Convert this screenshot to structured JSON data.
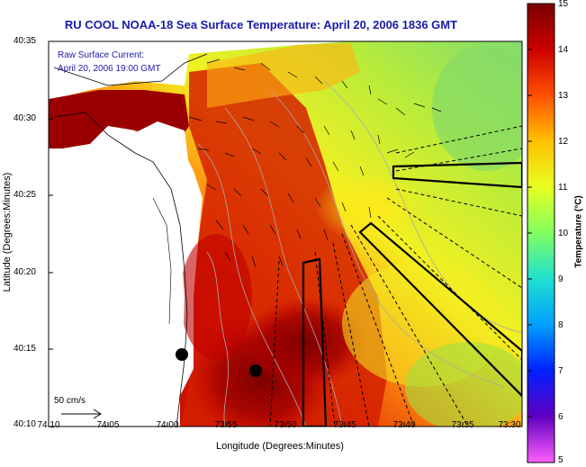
{
  "title": "RU COOL  NOAA-18  Sea Surface Temperature:  April 20, 2006 1836 GMT",
  "current_legend": {
    "line1": "Raw Surface Current:",
    "line2": "April 20, 2006 19:00 GMT"
  },
  "scale_label": "50 cm/s",
  "axes": {
    "xlabel": "Longitude (Degrees:Minutes)",
    "ylabel": "Latitude (Degrees:Minutes)",
    "x_ticks": [
      "74:10",
      "74:05",
      "74:00",
      "73:55",
      "73:50",
      "73:45",
      "73:40",
      "73:35",
      "73:30"
    ],
    "y_ticks": [
      "40:35",
      "40:30",
      "40:25",
      "40:20",
      "40:15",
      "40:10"
    ]
  },
  "colorbar": {
    "label": "Temperature (°C)",
    "ticks": [
      "15",
      "14",
      "13",
      "12",
      "11",
      "10",
      "9",
      "8",
      "7",
      "6",
      "5"
    ],
    "min": 5,
    "max": 15
  },
  "colors": {
    "title": "#1a1aa8",
    "warm": "#8b0000",
    "cool": "#7fd86b"
  }
}
